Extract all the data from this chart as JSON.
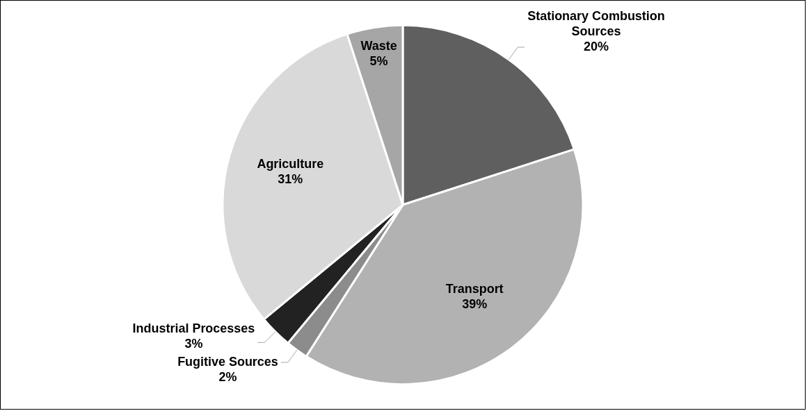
{
  "chart_data": {
    "type": "pie",
    "categories": [
      "Stationary Combustion Sources",
      "Transport",
      "Fugitive Sources",
      "Industrial Processes",
      "Agriculture",
      "Waste"
    ],
    "values": [
      20,
      39,
      2,
      3,
      31,
      5
    ],
    "colors": [
      "#5f5f5f",
      "#b2b2b2",
      "#8c8c8c",
      "#222222",
      "#d9d9d9",
      "#a6a6a6"
    ],
    "value_labels": [
      "20%",
      "39%",
      "2%",
      "3%",
      "31%",
      "5%"
    ],
    "legend": false
  }
}
